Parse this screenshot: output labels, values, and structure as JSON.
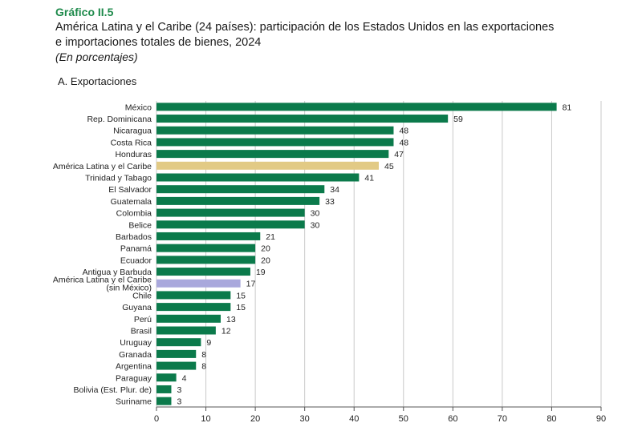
{
  "header": {
    "label": "Gráfico II.5",
    "title_line1": "América Latina y el Caribe (24 países): participación de los Estados Unidos en las exportaciones",
    "title_line2": "e importaciones totales de bienes, 2024",
    "subtitle": "(En porcentajes)"
  },
  "chart_data": {
    "type": "bar",
    "orientation": "horizontal",
    "panel_title": "A. Exportaciones",
    "categories": [
      "México",
      "Rep. Dominicana",
      "Nicaragua",
      "Costa Rica",
      "Honduras",
      "América Latina y el Caribe",
      "Trinidad y Tabago",
      "El Salvador",
      "Guatemala",
      "Colombia",
      "Belice",
      "Barbados",
      "Panamá",
      "Ecuador",
      "Antigua y Barbuda",
      "América Latina y el Caribe (sin México)",
      "Chile",
      "Guyana",
      "Perú",
      "Brasil",
      "Uruguay",
      "Granada",
      "Argentina",
      "Paraguay",
      "Bolivia (Est. Plur. de)",
      "Suriname"
    ],
    "category_lines": [
      [
        "México"
      ],
      [
        "Rep. Dominicana"
      ],
      [
        "Nicaragua"
      ],
      [
        "Costa Rica"
      ],
      [
        "Honduras"
      ],
      [
        "América Latina y el Caribe"
      ],
      [
        "Trinidad y Tabago"
      ],
      [
        "El Salvador"
      ],
      [
        "Guatemala"
      ],
      [
        "Colombia"
      ],
      [
        "Belice"
      ],
      [
        "Barbados"
      ],
      [
        "Panamá"
      ],
      [
        "Ecuador"
      ],
      [
        "Antigua y Barbuda"
      ],
      [
        "América Latina y el Caribe",
        "(sin México)"
      ],
      [
        "Chile"
      ],
      [
        "Guyana"
      ],
      [
        "Perú"
      ],
      [
        "Brasil"
      ],
      [
        "Uruguay"
      ],
      [
        "Granada"
      ],
      [
        "Argentina"
      ],
      [
        "Paraguay"
      ],
      [
        "Bolivia (Est. Plur. de)"
      ],
      [
        "Suriname"
      ]
    ],
    "values": [
      81,
      59,
      48,
      48,
      47,
      45,
      41,
      34,
      33,
      30,
      30,
      21,
      20,
      20,
      19,
      17,
      15,
      15,
      13,
      12,
      9,
      8,
      8,
      4,
      3,
      3
    ],
    "value_labels": [
      "81",
      "59",
      "48",
      "48",
      "47",
      "45",
      "41",
      "34",
      "33",
      "30",
      "30",
      "21",
      "20",
      "20",
      "19",
      "17",
      "15",
      "15",
      "13",
      "12",
      "9",
      "8",
      "8",
      "4",
      "3",
      "3"
    ],
    "bar_colors": [
      "#0b7a4b",
      "#0b7a4b",
      "#0b7a4b",
      "#0b7a4b",
      "#0b7a4b",
      "#e2ca85",
      "#0b7a4b",
      "#0b7a4b",
      "#0b7a4b",
      "#0b7a4b",
      "#0b7a4b",
      "#0b7a4b",
      "#0b7a4b",
      "#0b7a4b",
      "#0b7a4b",
      "#a9a8dc",
      "#0b7a4b",
      "#0b7a4b",
      "#0b7a4b",
      "#0b7a4b",
      "#0b7a4b",
      "#0b7a4b",
      "#0b7a4b",
      "#0b7a4b",
      "#0b7a4b",
      "#0b7a4b"
    ],
    "xlim": [
      0,
      90
    ],
    "xticks": [
      0,
      10,
      20,
      30,
      40,
      50,
      60,
      70,
      80,
      90
    ],
    "xtick_labels": [
      "0",
      "10",
      "20",
      "30",
      "40",
      "50",
      "60",
      "70",
      "80",
      "90"
    ],
    "grid": "vertical",
    "legend": "none"
  }
}
